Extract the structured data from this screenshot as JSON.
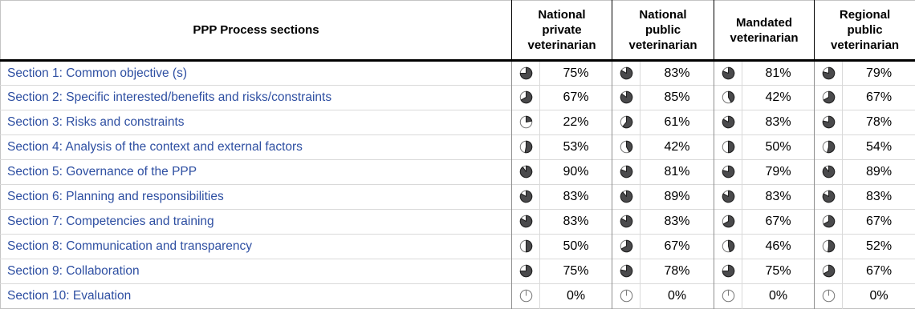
{
  "meta": {
    "accent_blue": "#2e4fa2",
    "pie_fill": "#4a4a4c",
    "pie_stroke": "#1f1f1f",
    "pie_ring": "#7a7a7a",
    "header_rule_color": "#000000",
    "grid_color": "#d9d9d9"
  },
  "table": {
    "title": "PPP Process sections",
    "columns": [
      {
        "label": "National\nprivate\nveterinarian"
      },
      {
        "label": "National\npublic\nveterinarian"
      },
      {
        "label": "Mandated\nveterinarian"
      },
      {
        "label": "Regional\npublic\nveterinarian"
      }
    ],
    "rows": [
      {
        "label": "Section 1: Common objective (s)",
        "values": [
          "75%",
          "83%",
          "81%",
          "79%"
        ]
      },
      {
        "label": "Section 2: Specific interested/benefits and risks/constraints",
        "values": [
          "67%",
          "85%",
          "42%",
          "67%"
        ]
      },
      {
        "label": "Section 3: Risks and constraints",
        "values": [
          "22%",
          "61%",
          "83%",
          "78%"
        ]
      },
      {
        "label": "Section 4: Analysis of the context and external factors",
        "values": [
          "53%",
          "42%",
          "50%",
          "54%"
        ]
      },
      {
        "label": "Section 5: Governance of the PPP",
        "values": [
          "90%",
          "81%",
          "79%",
          "89%"
        ]
      },
      {
        "label": "Section 6: Planning and responsibilities",
        "values": [
          "83%",
          "89%",
          "83%",
          "83%"
        ]
      },
      {
        "label": "Section 7: Competencies and training",
        "values": [
          "83%",
          "83%",
          "67%",
          "67%"
        ]
      },
      {
        "label": "Section 8: Communication and transparency",
        "values": [
          "50%",
          "67%",
          "46%",
          "52%"
        ]
      },
      {
        "label": "Section 9: Collaboration",
        "values": [
          "75%",
          "78%",
          "75%",
          "67%"
        ]
      },
      {
        "label": "Section 10: Evaluation",
        "values": [
          "0%",
          "0%",
          "0%",
          "0%"
        ]
      }
    ]
  },
  "chart_data": {
    "type": "table",
    "title": "PPP Process sections",
    "unit": "%",
    "categories": [
      "Section 1: Common objective (s)",
      "Section 2: Specific interested/benefits and risks/constraints",
      "Section 3: Risks and constraints",
      "Section 4: Analysis of the context and external factors",
      "Section 5: Governance of the PPP",
      "Section 6: Planning and responsibilities",
      "Section 7: Competencies and training",
      "Section 8: Communication and transparency",
      "Section 9: Collaboration",
      "Section 10: Evaluation"
    ],
    "series": [
      {
        "name": "National private veterinarian",
        "values": [
          75,
          67,
          22,
          53,
          90,
          83,
          83,
          50,
          75,
          0
        ]
      },
      {
        "name": "National public veterinarian",
        "values": [
          83,
          85,
          61,
          42,
          81,
          89,
          83,
          67,
          78,
          0
        ]
      },
      {
        "name": "Mandated veterinarian",
        "values": [
          81,
          42,
          83,
          50,
          79,
          83,
          67,
          46,
          75,
          0
        ]
      },
      {
        "name": "Regional public veterinarian",
        "values": [
          79,
          67,
          78,
          54,
          89,
          83,
          67,
          52,
          67,
          0
        ]
      }
    ]
  }
}
